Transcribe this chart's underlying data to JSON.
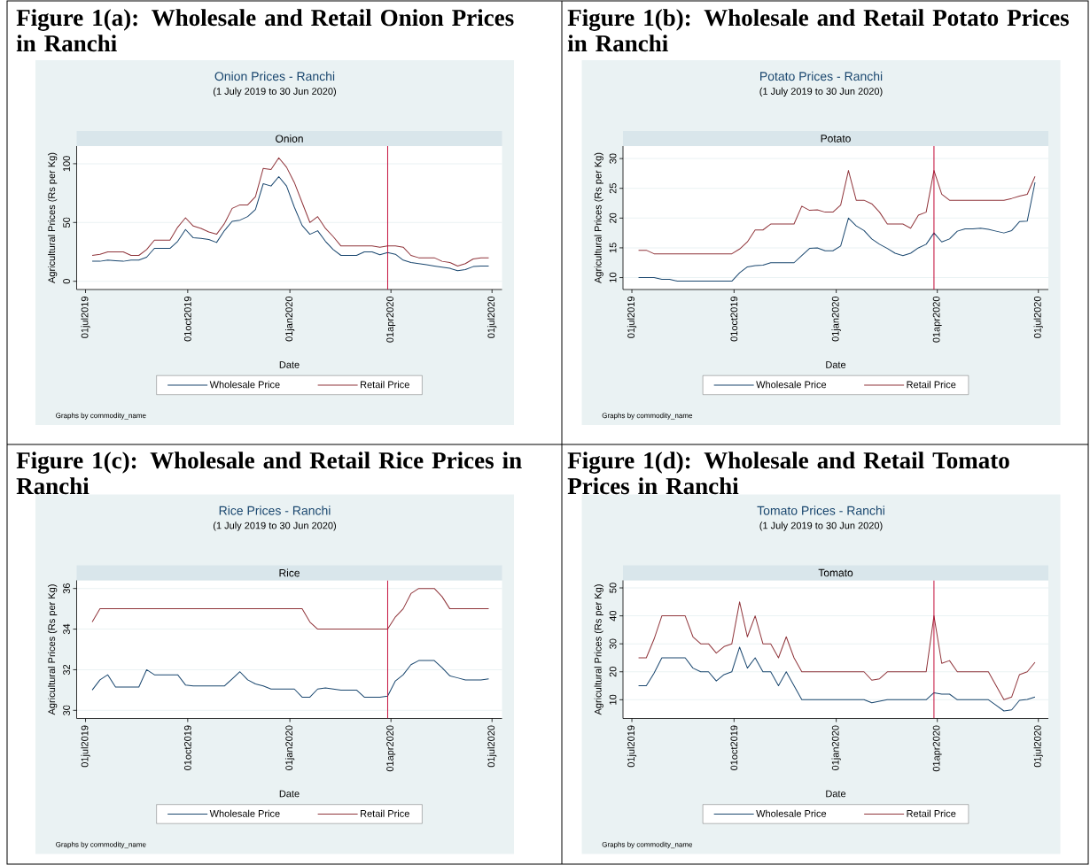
{
  "chart_data": [
    {
      "type": "line",
      "title": "Onion Prices - Ranchi",
      "subtitle": "(1 July 2019 to 30 Jun 2020)",
      "xlabel": "Date",
      "ylabel": "Agricultural Prices (Rs per Kg)",
      "annotations": [
        "Figure 1(a): Wholesale and Retail Onion Prices in Ranchi",
        "Onion",
        "Graphs by commodity_name"
      ],
      "x": [
        "2019-07-07",
        "2019-07-14",
        "2019-07-21",
        "2019-07-28",
        "2019-08-04",
        "2019-08-11",
        "2019-08-18",
        "2019-08-25",
        "2019-09-01",
        "2019-09-08",
        "2019-09-15",
        "2019-09-22",
        "2019-09-29",
        "2019-10-06",
        "2019-10-13",
        "2019-10-20",
        "2019-10-27",
        "2019-11-03",
        "2019-11-10",
        "2019-11-17",
        "2019-11-24",
        "2019-12-01",
        "2019-12-08",
        "2019-12-15",
        "2019-12-22",
        "2019-12-29",
        "2020-01-05",
        "2020-01-12",
        "2020-01-19",
        "2020-01-26",
        "2020-02-02",
        "2020-02-09",
        "2020-02-16",
        "2020-02-23",
        "2020-03-01",
        "2020-03-08",
        "2020-03-15",
        "2020-03-22",
        "2020-03-29",
        "2020-04-05",
        "2020-04-12",
        "2020-04-19",
        "2020-04-26",
        "2020-05-03",
        "2020-05-10",
        "2020-05-17",
        "2020-05-24",
        "2020-05-31",
        "2020-06-07",
        "2020-06-14",
        "2020-06-21",
        "2020-06-28"
      ],
      "series": [
        {
          "name": "Wholesale Price",
          "color": "#1a476f",
          "values": [
            17,
            17,
            18,
            17.5,
            17,
            18,
            18,
            20.5,
            28,
            28,
            28,
            34,
            44,
            37,
            36.5,
            35.5,
            33,
            43,
            51,
            52,
            55,
            61,
            83,
            81,
            89,
            81,
            63,
            47.5,
            40,
            43,
            34,
            27,
            22,
            22,
            22,
            25,
            25,
            22.5,
            24.5,
            23,
            18,
            16,
            15,
            14,
            13,
            12,
            11,
            9,
            10,
            12.5,
            13,
            13
          ]
        },
        {
          "name": "Retail Price",
          "color": "#90353b",
          "values": [
            22,
            23,
            25,
            25,
            25,
            22,
            22,
            27,
            35,
            35,
            35,
            46,
            54,
            47,
            45,
            42,
            40,
            49,
            62,
            65,
            65,
            72,
            96,
            95,
            105,
            97,
            84,
            67,
            50,
            55,
            45,
            38,
            30,
            30,
            30,
            30,
            30,
            29,
            30,
            30,
            29,
            22,
            20,
            20,
            20,
            17,
            16,
            13,
            15,
            19,
            20,
            20
          ]
        }
      ],
      "xlim": [
        "2019-06-23",
        "2020-07-10"
      ],
      "xticks": [
        {
          "value": "2019-07-01",
          "label": "01jul2019"
        },
        {
          "value": "2019-10-01",
          "label": "01oct2019"
        },
        {
          "value": "2020-01-01",
          "label": "01jan2020"
        },
        {
          "value": "2020-04-01",
          "label": "01apr2020"
        },
        {
          "value": "2020-07-01",
          "label": "01jul2020"
        }
      ],
      "ylim": [
        -7,
        115
      ],
      "yticks": [
        0,
        50,
        100
      ],
      "ref_lines": [
        {
          "axis": "x",
          "value": "2020-03-29",
          "color": "#c10534"
        }
      ],
      "grid": "y",
      "legend": "bottom"
    },
    {
      "type": "line",
      "title": "Potato Prices - Ranchi",
      "subtitle": "(1 July 2019 to 30 Jun 2020)",
      "xlabel": "Date",
      "ylabel": "Agricultural Prices (Rs per Kg)",
      "annotations": [
        "Figure 1(b): Wholesale and Retail Potato Prices in Ranchi",
        "Potato",
        "Graphs by commodity_name"
      ],
      "x": [
        "2019-07-07",
        "2019-07-14",
        "2019-07-21",
        "2019-07-28",
        "2019-08-04",
        "2019-08-11",
        "2019-08-18",
        "2019-08-25",
        "2019-09-01",
        "2019-09-08",
        "2019-09-15",
        "2019-09-22",
        "2019-09-29",
        "2019-10-06",
        "2019-10-13",
        "2019-10-20",
        "2019-10-27",
        "2019-11-03",
        "2019-11-10",
        "2019-11-17",
        "2019-11-24",
        "2019-12-01",
        "2019-12-08",
        "2019-12-15",
        "2019-12-22",
        "2019-12-29",
        "2020-01-05",
        "2020-01-12",
        "2020-01-19",
        "2020-01-26",
        "2020-02-02",
        "2020-02-09",
        "2020-02-16",
        "2020-02-23",
        "2020-03-01",
        "2020-03-08",
        "2020-03-15",
        "2020-03-22",
        "2020-03-29",
        "2020-04-05",
        "2020-04-12",
        "2020-04-19",
        "2020-04-26",
        "2020-05-03",
        "2020-05-10",
        "2020-05-17",
        "2020-05-24",
        "2020-05-31",
        "2020-06-07",
        "2020-06-14",
        "2020-06-21",
        "2020-06-28"
      ],
      "series": [
        {
          "name": "Wholesale Price",
          "color": "#1a476f",
          "values": [
            10,
            10,
            10,
            9.7,
            9.7,
            9.4,
            9.4,
            9.4,
            9.4,
            9.4,
            9.4,
            9.4,
            9.4,
            10.8,
            11.8,
            12,
            12.1,
            12.5,
            12.5,
            12.5,
            12.5,
            13.7,
            14.9,
            15,
            14.5,
            14.5,
            15.3,
            20,
            18.7,
            17.9,
            16.5,
            15.6,
            14.9,
            14.1,
            13.7,
            14.1,
            15,
            15.6,
            17.5,
            16,
            16.5,
            17.8,
            18.2,
            18.2,
            18.3,
            18.1,
            17.8,
            17.5,
            17.9,
            19.4,
            19.5,
            26
          ]
        },
        {
          "name": "Retail Price",
          "color": "#90353b",
          "values": [
            14.6,
            14.6,
            14,
            14,
            14,
            14,
            14,
            14,
            14,
            14,
            14,
            14,
            14,
            14.8,
            16,
            18,
            18,
            19,
            19,
            19,
            19,
            22,
            21.3,
            21.4,
            21,
            21,
            22.2,
            28,
            23,
            23,
            22.4,
            21,
            19,
            19,
            19,
            18.3,
            20.5,
            21,
            28,
            24,
            23,
            23,
            23,
            23,
            23,
            23,
            23,
            23,
            23.3,
            23.7,
            24,
            27
          ]
        }
      ],
      "xlim": [
        "2019-06-23",
        "2020-07-10"
      ],
      "xticks": [
        {
          "value": "2019-07-01",
          "label": "01jul2019"
        },
        {
          "value": "2019-10-01",
          "label": "01oct2019"
        },
        {
          "value": "2020-01-01",
          "label": "01jan2020"
        },
        {
          "value": "2020-04-01",
          "label": "01apr2020"
        },
        {
          "value": "2020-07-01",
          "label": "01jul2020"
        }
      ],
      "ylim": [
        8,
        32.1
      ],
      "yticks": [
        10,
        15,
        20,
        25,
        30
      ],
      "ref_lines": [
        {
          "axis": "x",
          "value": "2020-03-29",
          "color": "#c10534"
        }
      ],
      "grid": "y",
      "legend": "bottom"
    },
    {
      "type": "line",
      "title": "Rice Prices - Ranchi",
      "subtitle": "(1 July 2019 to 30 Jun 2020)",
      "xlabel": "Date",
      "ylabel": "Agricultural Prices (Rs per Kg)",
      "annotations": [
        "Figure 1(c): Wholesale and Retail Rice Prices in Ranchi",
        "Rice",
        "Graphs by commodity_name"
      ],
      "x": [
        "2019-07-07",
        "2019-07-14",
        "2019-07-21",
        "2019-07-28",
        "2019-08-04",
        "2019-08-11",
        "2019-08-18",
        "2019-08-25",
        "2019-09-01",
        "2019-09-08",
        "2019-09-15",
        "2019-09-22",
        "2019-09-29",
        "2019-10-06",
        "2019-10-13",
        "2019-10-20",
        "2019-10-27",
        "2019-11-03",
        "2019-11-10",
        "2019-11-17",
        "2019-11-24",
        "2019-12-01",
        "2019-12-08",
        "2019-12-15",
        "2019-12-22",
        "2019-12-29",
        "2020-01-05",
        "2020-01-12",
        "2020-01-19",
        "2020-01-26",
        "2020-02-02",
        "2020-02-09",
        "2020-02-16",
        "2020-02-23",
        "2020-03-01",
        "2020-03-08",
        "2020-03-15",
        "2020-03-22",
        "2020-03-29",
        "2020-04-05",
        "2020-04-12",
        "2020-04-19",
        "2020-04-26",
        "2020-05-03",
        "2020-05-10",
        "2020-05-17",
        "2020-05-24",
        "2020-05-31",
        "2020-06-07",
        "2020-06-14",
        "2020-06-21",
        "2020-06-28"
      ],
      "series": [
        {
          "name": "Wholesale Price",
          "color": "#1a476f",
          "values": [
            31,
            31.5,
            31.75,
            31.15,
            31.15,
            31.15,
            31.15,
            32,
            31.75,
            31.75,
            31.75,
            31.75,
            31.25,
            31.2,
            31.2,
            31.2,
            31.2,
            31.2,
            31.55,
            31.9,
            31.5,
            31.3,
            31.2,
            31.05,
            31.05,
            31.05,
            31.05,
            30.65,
            30.65,
            31.05,
            31.1,
            31.05,
            31,
            31,
            31,
            30.65,
            30.65,
            30.65,
            30.7,
            31.45,
            31.75,
            32.25,
            32.45,
            32.45,
            32.45,
            32.1,
            31.7,
            31.6,
            31.5,
            31.5,
            31.5,
            31.55
          ]
        },
        {
          "name": "Retail Price",
          "color": "#90353b",
          "values": [
            34.35,
            35,
            35,
            35,
            35,
            35,
            35,
            35,
            35,
            35,
            35,
            35,
            35,
            35,
            35,
            35,
            35,
            35,
            35,
            35,
            35,
            35,
            35,
            35,
            35,
            35,
            35,
            35,
            34.35,
            34,
            34,
            34,
            34,
            34,
            34,
            34,
            34,
            34,
            34,
            34.6,
            35,
            35.75,
            36,
            36,
            36,
            35.6,
            35,
            35,
            35,
            35,
            35,
            35
          ]
        }
      ],
      "xlim": [
        "2019-06-23",
        "2020-07-10"
      ],
      "xticks": [
        {
          "value": "2019-07-01",
          "label": "01jul2019"
        },
        {
          "value": "2019-10-01",
          "label": "01oct2019"
        },
        {
          "value": "2020-01-01",
          "label": "01jan2020"
        },
        {
          "value": "2020-04-01",
          "label": "01apr2020"
        },
        {
          "value": "2020-07-01",
          "label": "01jul2020"
        }
      ],
      "ylim": [
        29.6,
        36.4
      ],
      "yticks": [
        30,
        32,
        34,
        36
      ],
      "ref_lines": [
        {
          "axis": "x",
          "value": "2020-03-29",
          "color": "#c10534"
        }
      ],
      "grid": "y",
      "legend": "bottom"
    },
    {
      "type": "line",
      "title": "Tomato Prices - Ranchi",
      "subtitle": "(1 July 2019 to 30 Jun 2020)",
      "xlabel": "Date",
      "ylabel": "Agricultural Prices (Rs per Kg)",
      "annotations": [
        "Figure 1(d): Wholesale and Retail Tomato Prices in Ranchi",
        "Tomato",
        "Graphs by commodity_name"
      ],
      "x": [
        "2019-07-07",
        "2019-07-14",
        "2019-07-21",
        "2019-07-28",
        "2019-08-04",
        "2019-08-11",
        "2019-08-18",
        "2019-08-25",
        "2019-09-01",
        "2019-09-08",
        "2019-09-15",
        "2019-09-22",
        "2019-09-29",
        "2019-10-06",
        "2019-10-13",
        "2019-10-20",
        "2019-10-27",
        "2019-11-03",
        "2019-11-10",
        "2019-11-17",
        "2019-11-24",
        "2019-12-01",
        "2019-12-08",
        "2019-12-15",
        "2019-12-22",
        "2019-12-29",
        "2020-01-05",
        "2020-01-12",
        "2020-01-19",
        "2020-01-26",
        "2020-02-02",
        "2020-02-09",
        "2020-02-16",
        "2020-02-23",
        "2020-03-01",
        "2020-03-08",
        "2020-03-15",
        "2020-03-22",
        "2020-03-29",
        "2020-04-05",
        "2020-04-12",
        "2020-04-19",
        "2020-04-26",
        "2020-05-03",
        "2020-05-10",
        "2020-05-17",
        "2020-05-24",
        "2020-05-31",
        "2020-06-07",
        "2020-06-14",
        "2020-06-21",
        "2020-06-28"
      ],
      "series": [
        {
          "name": "Wholesale Price",
          "color": "#1a476f",
          "values": [
            15,
            15,
            19.5,
            25,
            25,
            25,
            25,
            21.3,
            20,
            20,
            16.7,
            19,
            20,
            28.8,
            21.3,
            25,
            20,
            20,
            15,
            20,
            15,
            10,
            10,
            10,
            10,
            10,
            10,
            10,
            10,
            10,
            8.9,
            9.5,
            10,
            10,
            10,
            10,
            10,
            10,
            12.5,
            12,
            12,
            10,
            10,
            10,
            10,
            10,
            8,
            6,
            6.4,
            9.8,
            10.1,
            11
          ]
        },
        {
          "name": "Retail Price",
          "color": "#90353b",
          "values": [
            25,
            25,
            31.7,
            40,
            40,
            40,
            40,
            32.5,
            30,
            30,
            26.7,
            29,
            30,
            45,
            32.5,
            40,
            30,
            30,
            25,
            32.5,
            25,
            20,
            20,
            20,
            20,
            20,
            20,
            20,
            20,
            20,
            17,
            17.5,
            20,
            20,
            20,
            20,
            20,
            20,
            40,
            23,
            24,
            20,
            20,
            20,
            20,
            20,
            15,
            10,
            11,
            19,
            20,
            23.4
          ]
        }
      ],
      "xlim": [
        "2019-06-23",
        "2020-07-10"
      ],
      "xticks": [
        {
          "value": "2019-07-01",
          "label": "01jul2019"
        },
        {
          "value": "2019-10-01",
          "label": "01oct2019"
        },
        {
          "value": "2020-01-01",
          "label": "01jan2020"
        },
        {
          "value": "2020-04-01",
          "label": "01apr2020"
        },
        {
          "value": "2020-07-01",
          "label": "01jul2020"
        }
      ],
      "ylim": [
        3.3,
        52.7
      ],
      "yticks": [
        10,
        20,
        30,
        40,
        50
      ],
      "ref_lines": [
        {
          "axis": "x",
          "value": "2020-03-29",
          "color": "#c10534"
        }
      ],
      "grid": "y",
      "legend": "bottom"
    }
  ]
}
